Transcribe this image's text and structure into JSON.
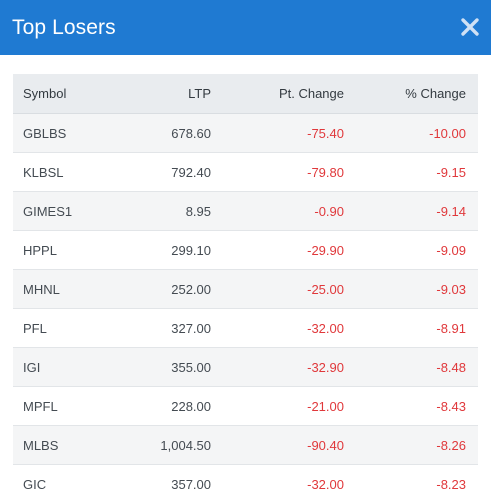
{
  "modal": {
    "title": "Top Losers",
    "close_icon": "close-icon",
    "header_color": "#1f7ad2"
  },
  "table": {
    "columns": [
      "Symbol",
      "LTP",
      "Pt. Change",
      "% Change"
    ],
    "rows": [
      {
        "symbol": "GBLBS",
        "ltp": "678.60",
        "pt_change": "-75.40",
        "pct_change": "-10.00"
      },
      {
        "symbol": "KLBSL",
        "ltp": "792.40",
        "pt_change": "-79.80",
        "pct_change": "-9.15"
      },
      {
        "symbol": "GIMES1",
        "ltp": "8.95",
        "pt_change": "-0.90",
        "pct_change": "-9.14"
      },
      {
        "symbol": "HPPL",
        "ltp": "299.10",
        "pt_change": "-29.90",
        "pct_change": "-9.09"
      },
      {
        "symbol": "MHNL",
        "ltp": "252.00",
        "pt_change": "-25.00",
        "pct_change": "-9.03"
      },
      {
        "symbol": "PFL",
        "ltp": "327.00",
        "pt_change": "-32.00",
        "pct_change": "-8.91"
      },
      {
        "symbol": "IGI",
        "ltp": "355.00",
        "pt_change": "-32.90",
        "pct_change": "-8.48"
      },
      {
        "symbol": "MPFL",
        "ltp": "228.00",
        "pt_change": "-21.00",
        "pct_change": "-8.43"
      },
      {
        "symbol": "MLBS",
        "ltp": "1,004.50",
        "pt_change": "-90.40",
        "pct_change": "-8.26"
      },
      {
        "symbol": "GIC",
        "ltp": "357.00",
        "pt_change": "-32.00",
        "pct_change": "-8.23"
      }
    ],
    "negative_color": "#e0383b"
  }
}
